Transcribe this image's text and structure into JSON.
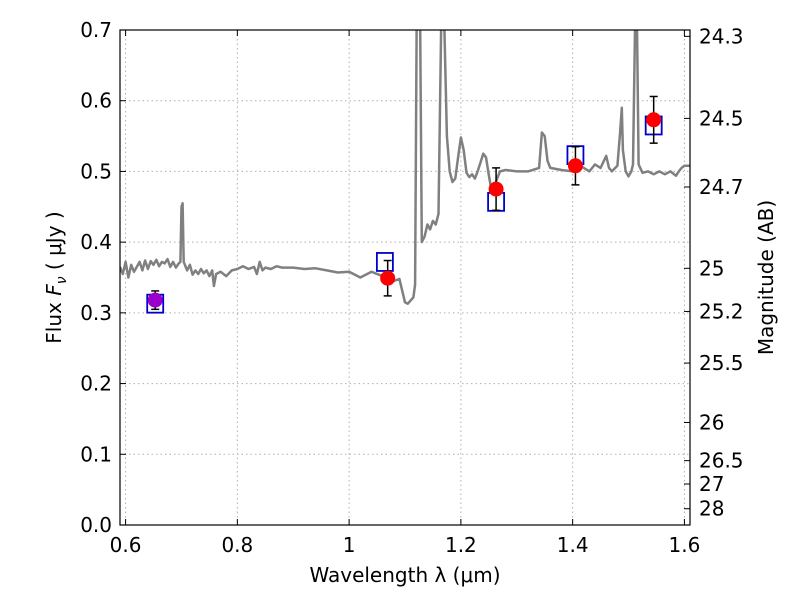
{
  "chart_data": {
    "type": "line",
    "xlabel": "Wavelength  λ (μm)",
    "ylabel": "Flux  F_ν  ( μJy )",
    "ylabel_right": "Magnitude (AB)",
    "xlim": [
      0.59,
      1.61
    ],
    "ylim": [
      0.0,
      0.7
    ],
    "grid": true,
    "x_ticks": [
      0.6,
      0.8,
      1.0,
      1.2,
      1.4,
      1.6
    ],
    "x_tick_labels": [
      "0.6",
      "0.8",
      "1",
      "1.2",
      "1.4",
      "1.6"
    ],
    "y_ticks": [
      0.0,
      0.1,
      0.2,
      0.3,
      0.4,
      0.5,
      0.6,
      0.7
    ],
    "y_tick_labels": [
      "0.0",
      "0.1",
      "0.2",
      "0.3",
      "0.4",
      "0.5",
      "0.6",
      "0.7"
    ],
    "right_ticks": [
      {
        "label": "24.3",
        "flux": 0.691
      },
      {
        "label": "24.5",
        "flux": 0.575
      },
      {
        "label": "24.7",
        "flux": 0.478
      },
      {
        "label": "25",
        "flux": 0.363
      },
      {
        "label": "25.2",
        "flux": 0.302
      },
      {
        "label": "25.5",
        "flux": 0.229
      },
      {
        "label": "26",
        "flux": 0.145
      },
      {
        "label": "26.5",
        "flux": 0.091
      },
      {
        "label": "27",
        "flux": 0.058
      },
      {
        "label": "28",
        "flux": 0.023
      }
    ],
    "colors": {
      "spectrum": "#808080",
      "model_box": "#0000cc",
      "observed": "#ff0000",
      "errorbar": "#000000",
      "first_point": "#9900cc",
      "grid": "#b0b0b0"
    },
    "series": [
      {
        "kind": "spectrum",
        "points": [
          [
            0.59,
            0.365
          ],
          [
            0.595,
            0.355
          ],
          [
            0.6,
            0.372
          ],
          [
            0.605,
            0.35
          ],
          [
            0.61,
            0.368
          ],
          [
            0.615,
            0.358
          ],
          [
            0.62,
            0.365
          ],
          [
            0.625,
            0.372
          ],
          [
            0.63,
            0.36
          ],
          [
            0.635,
            0.374
          ],
          [
            0.64,
            0.362
          ],
          [
            0.645,
            0.373
          ],
          [
            0.65,
            0.368
          ],
          [
            0.655,
            0.375
          ],
          [
            0.66,
            0.366
          ],
          [
            0.665,
            0.372
          ],
          [
            0.67,
            0.37
          ],
          [
            0.675,
            0.376
          ],
          [
            0.68,
            0.365
          ],
          [
            0.685,
            0.372
          ],
          [
            0.69,
            0.364
          ],
          [
            0.695,
            0.37
          ],
          [
            0.698,
            0.372
          ],
          [
            0.7,
            0.45
          ],
          [
            0.702,
            0.455
          ],
          [
            0.704,
            0.372
          ],
          [
            0.71,
            0.36
          ],
          [
            0.715,
            0.368
          ],
          [
            0.72,
            0.354
          ],
          [
            0.725,
            0.36
          ],
          [
            0.73,
            0.355
          ],
          [
            0.735,
            0.362
          ],
          [
            0.74,
            0.356
          ],
          [
            0.745,
            0.36
          ],
          [
            0.75,
            0.352
          ],
          [
            0.755,
            0.36
          ],
          [
            0.758,
            0.338
          ],
          [
            0.762,
            0.355
          ],
          [
            0.77,
            0.358
          ],
          [
            0.78,
            0.352
          ],
          [
            0.79,
            0.36
          ],
          [
            0.8,
            0.362
          ],
          [
            0.81,
            0.366
          ],
          [
            0.82,
            0.362
          ],
          [
            0.83,
            0.365
          ],
          [
            0.835,
            0.355
          ],
          [
            0.84,
            0.372
          ],
          [
            0.845,
            0.36
          ],
          [
            0.85,
            0.364
          ],
          [
            0.86,
            0.362
          ],
          [
            0.87,
            0.366
          ],
          [
            0.88,
            0.364
          ],
          [
            0.9,
            0.364
          ],
          [
            0.92,
            0.362
          ],
          [
            0.94,
            0.363
          ],
          [
            0.96,
            0.36
          ],
          [
            0.98,
            0.357
          ],
          [
            1.0,
            0.358
          ],
          [
            1.02,
            0.35
          ],
          [
            1.04,
            0.358
          ],
          [
            1.06,
            0.352
          ],
          [
            1.08,
            0.345
          ],
          [
            1.09,
            0.348
          ],
          [
            1.1,
            0.315
          ],
          [
            1.105,
            0.313
          ],
          [
            1.115,
            0.322
          ],
          [
            1.118,
            0.34
          ],
          [
            1.121,
            0.72
          ],
          [
            1.127,
            0.72
          ],
          [
            1.13,
            0.4
          ],
          [
            1.135,
            0.408
          ],
          [
            1.14,
            0.425
          ],
          [
            1.145,
            0.418
          ],
          [
            1.15,
            0.43
          ],
          [
            1.155,
            0.425
          ],
          [
            1.16,
            0.44
          ],
          [
            1.165,
            0.72
          ],
          [
            1.17,
            0.72
          ],
          [
            1.175,
            0.55
          ],
          [
            1.18,
            0.5
          ],
          [
            1.185,
            0.485
          ],
          [
            1.19,
            0.49
          ],
          [
            1.195,
            0.52
          ],
          [
            1.2,
            0.548
          ],
          [
            1.205,
            0.53
          ],
          [
            1.21,
            0.498
          ],
          [
            1.215,
            0.492
          ],
          [
            1.22,
            0.496
          ],
          [
            1.225,
            0.49
          ],
          [
            1.23,
            0.5
          ],
          [
            1.235,
            0.512
          ],
          [
            1.24,
            0.525
          ],
          [
            1.245,
            0.52
          ],
          [
            1.25,
            0.495
          ],
          [
            1.255,
            0.472
          ],
          [
            1.26,
            0.48
          ],
          [
            1.265,
            0.49
          ],
          [
            1.27,
            0.5
          ],
          [
            1.28,
            0.502
          ],
          [
            1.3,
            0.5
          ],
          [
            1.32,
            0.5
          ],
          [
            1.34,
            0.505
          ],
          [
            1.345,
            0.555
          ],
          [
            1.35,
            0.55
          ],
          [
            1.355,
            0.515
          ],
          [
            1.36,
            0.505
          ],
          [
            1.38,
            0.502
          ],
          [
            1.4,
            0.5
          ],
          [
            1.41,
            0.51
          ],
          [
            1.42,
            0.505
          ],
          [
            1.43,
            0.5
          ],
          [
            1.44,
            0.51
          ],
          [
            1.45,
            0.505
          ],
          [
            1.46,
            0.522
          ],
          [
            1.465,
            0.505
          ],
          [
            1.47,
            0.5
          ],
          [
            1.48,
            0.508
          ],
          [
            1.485,
            0.555
          ],
          [
            1.488,
            0.59
          ],
          [
            1.49,
            0.53
          ],
          [
            1.495,
            0.5
          ],
          [
            1.5,
            0.493
          ],
          [
            1.505,
            0.5
          ],
          [
            1.508,
            0.51
          ],
          [
            1.512,
            0.72
          ],
          [
            1.515,
            0.72
          ],
          [
            1.518,
            0.51
          ],
          [
            1.525,
            0.498
          ],
          [
            1.535,
            0.5
          ],
          [
            1.545,
            0.496
          ],
          [
            1.555,
            0.5
          ],
          [
            1.565,
            0.496
          ],
          [
            1.575,
            0.5
          ],
          [
            1.585,
            0.494
          ],
          [
            1.59,
            0.5
          ],
          [
            1.595,
            0.505
          ],
          [
            1.6,
            0.508
          ],
          [
            1.61,
            0.508
          ]
        ]
      },
      {
        "kind": "model_boxes",
        "points": [
          [
            0.653,
            0.313
          ],
          [
            1.064,
            0.372
          ],
          [
            1.263,
            0.457
          ],
          [
            1.405,
            0.523
          ],
          [
            1.545,
            0.565
          ]
        ]
      },
      {
        "kind": "observed",
        "points": [
          {
            "x": 0.653,
            "y": 0.318,
            "yerr": 0.013
          },
          {
            "x": 1.069,
            "y": 0.349,
            "yerr": 0.025
          },
          {
            "x": 1.263,
            "y": 0.475,
            "yerr": 0.03
          },
          {
            "x": 1.405,
            "y": 0.508,
            "yerr": 0.027
          },
          {
            "x": 1.545,
            "y": 0.573,
            "yerr": 0.033
          }
        ]
      }
    ]
  }
}
